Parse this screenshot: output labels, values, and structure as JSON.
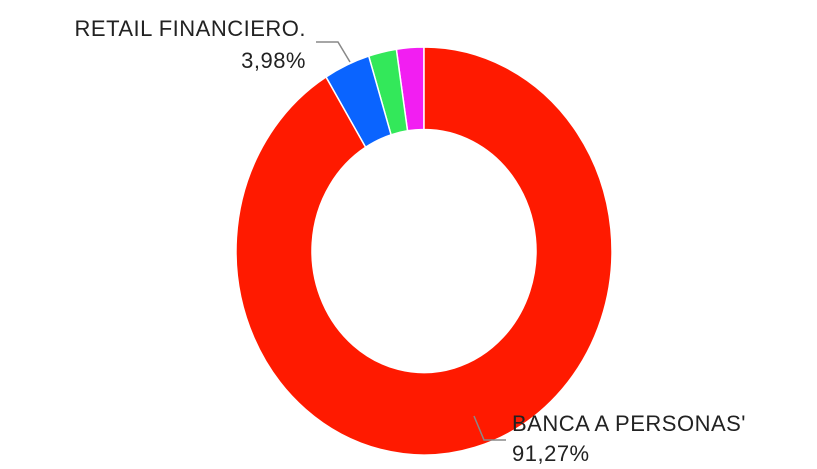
{
  "chart_data": {
    "type": "donut",
    "categories": [
      "BANCA A PERSONAS'",
      "RETAIL FINANCIERO.",
      null,
      null
    ],
    "values": [
      91.27,
      3.98,
      2.4,
      2.35
    ],
    "value_labels": [
      "91,27%",
      "3,98%",
      null,
      null
    ],
    "colors": [
      "#ff1a00",
      "#0a64ff",
      "#33e85a",
      "#f21ef2"
    ]
  }
}
